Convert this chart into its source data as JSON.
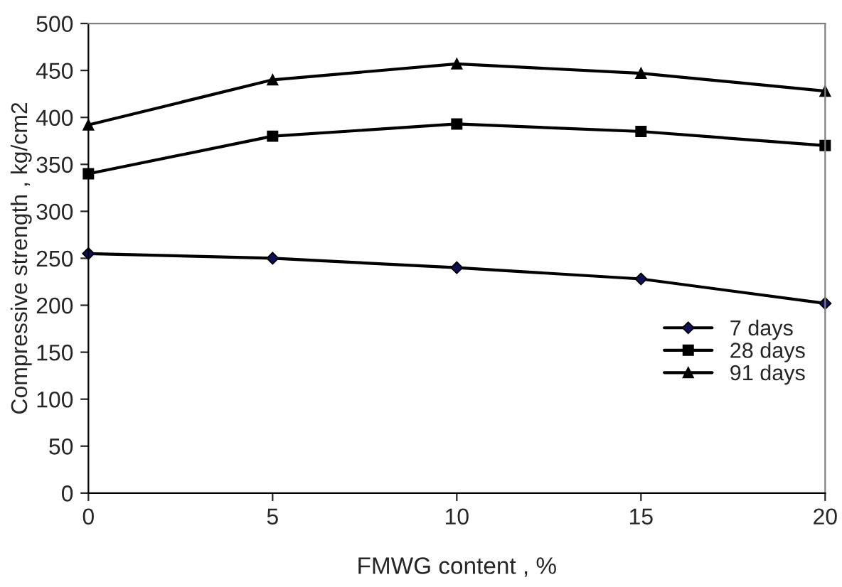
{
  "chart_data": {
    "type": "line",
    "xlabel": "FMWG content , %",
    "ylabel": "Compressive strength , kg/cm2",
    "x": [
      0,
      5,
      10,
      15,
      20
    ],
    "xlim": [
      0,
      20
    ],
    "xticks": [
      0,
      5,
      10,
      15,
      20
    ],
    "ylim": [
      0,
      500
    ],
    "yticks": [
      0,
      50,
      100,
      150,
      200,
      250,
      300,
      350,
      400,
      450,
      500
    ],
    "grid": false,
    "legend": "right",
    "line_style": "solid",
    "series": [
      {
        "name": "7 days",
        "color": "#000000",
        "marker": "diamond",
        "values": [
          255,
          250,
          240,
          228,
          202
        ]
      },
      {
        "name": "28 days",
        "color": "#000000",
        "marker": "square",
        "values": [
          340,
          380,
          393,
          385,
          370
        ]
      },
      {
        "name": "91 days",
        "color": "#000000",
        "marker": "triangle",
        "values": [
          392,
          440,
          457,
          447,
          428
        ]
      }
    ]
  }
}
